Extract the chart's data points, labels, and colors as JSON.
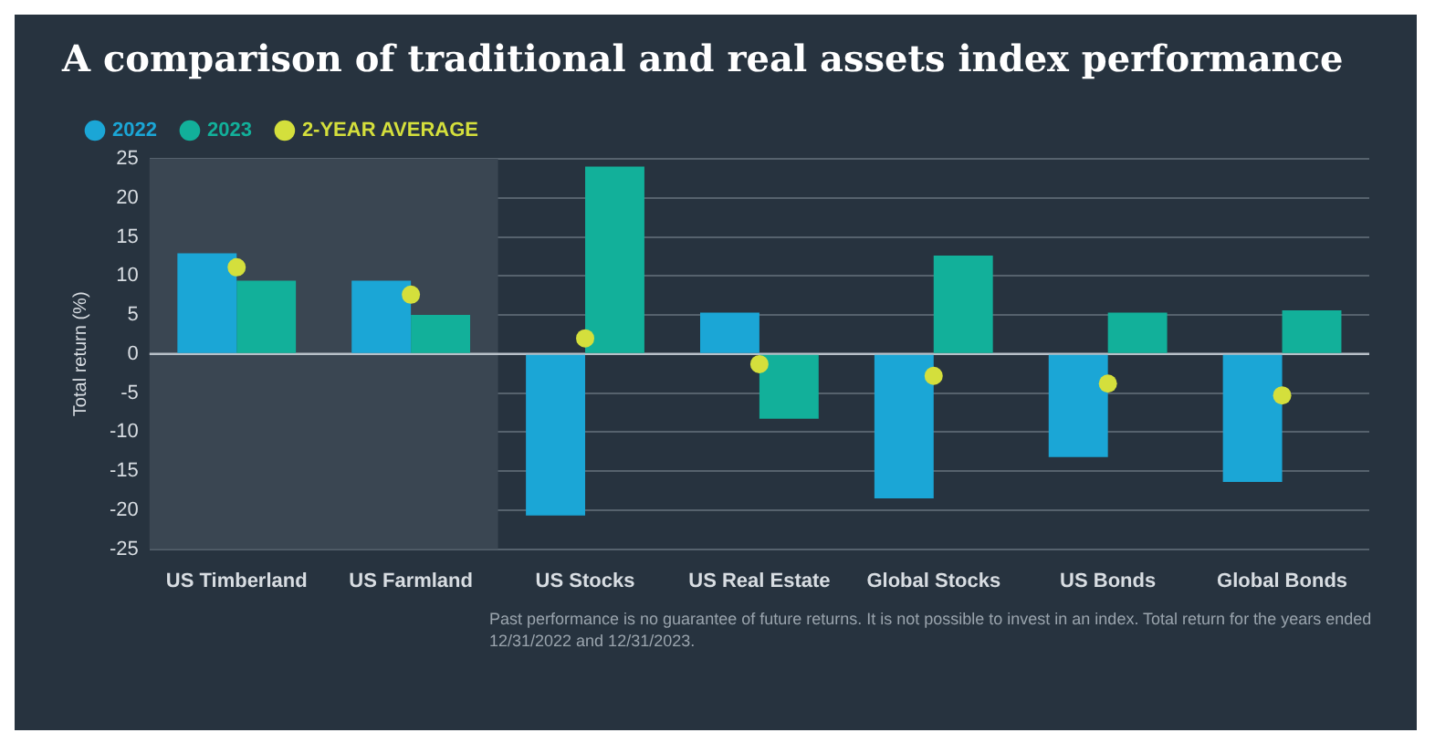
{
  "chart_data": {
    "type": "bar",
    "title": "A comparison of traditional and real assets index performance",
    "ylabel": "Total return (%)",
    "categories": [
      "US Timberland",
      "US Farmland",
      "US Stocks",
      "US Real Estate",
      "Global Stocks",
      "US Bonds",
      "Global Bonds"
    ],
    "series": [
      {
        "name": "2022",
        "color": "#1ba6d6",
        "values": [
          12.9,
          9.4,
          -20.7,
          5.3,
          -18.5,
          -13.2,
          -16.4
        ]
      },
      {
        "name": "2023",
        "color": "#12b09a",
        "values": [
          9.4,
          5.0,
          24.0,
          -8.3,
          12.6,
          5.3,
          5.6
        ]
      },
      {
        "name": "2-YEAR AVERAGE",
        "type": "scatter",
        "color": "#d4df3c",
        "x": [
          "US Timberland",
          "US Farmland",
          "US Stocks",
          "US Real Estate",
          "Global Stocks",
          "US Bonds",
          "Global Bonds"
        ],
        "values": [
          11.1,
          7.6,
          2.0,
          -1.3,
          -2.8,
          -3.8,
          -5.3
        ]
      }
    ],
    "ylim": [
      -25,
      25
    ],
    "yticks": [
      -25,
      -20,
      -15,
      -10,
      -5,
      0,
      5,
      10,
      15,
      20,
      25
    ],
    "grid": "y",
    "legend": "top left",
    "marker": "circle",
    "bands": [
      {
        "axis": "x",
        "from": "US Timberland",
        "to": "US Farmland",
        "color": "#3a4652"
      }
    ],
    "annotations": [
      "Past performance is no guarantee of future returns. It is not possible to invest in an index. Total return for the years ended 12/31/2022 and 12/31/2023."
    ]
  }
}
